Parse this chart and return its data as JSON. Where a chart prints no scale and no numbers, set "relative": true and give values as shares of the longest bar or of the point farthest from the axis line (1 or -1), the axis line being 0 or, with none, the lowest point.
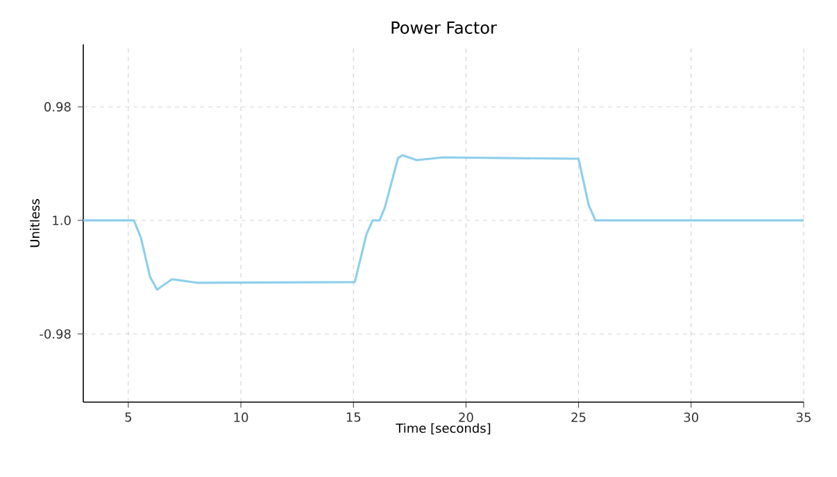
{
  "chart_data": {
    "type": "line",
    "title": "Power Factor",
    "xlabel": "Time [seconds]",
    "ylabel": "Unitless",
    "relative": true,
    "x": [
      3,
      5.25,
      5.56,
      5.97,
      6.28,
      6.94,
      8.04,
      15.06,
      15.58,
      15.85,
      16.16,
      16.4,
      16.98,
      17.19,
      17.81,
      18.97,
      25,
      25.45,
      25.75,
      35
    ],
    "series": [
      {
        "color": "#8ecfec",
        "values": [
          0,
          0,
          -0.25,
          -0.82,
          -1,
          -0.85,
          -0.9,
          -0.89,
          -0.2,
          0,
          0,
          0.19,
          0.9,
          0.94,
          0.87,
          0.91,
          0.89,
          0.22,
          0,
          0
        ]
      }
    ],
    "xlim": [
      3,
      35
    ],
    "xticks": [
      5,
      10,
      15,
      20,
      25,
      30,
      35
    ],
    "ref_lines": [
      {
        "axis": "y",
        "value": 1.64,
        "color": "#c8c8c8",
        "line_style": "dashed"
      },
      {
        "axis": "y",
        "value": 0,
        "color": "#c8c8c8",
        "line_style": "dashed"
      },
      {
        "axis": "y",
        "value": -1.64,
        "color": "#c8c8c8",
        "line_style": "dashed"
      }
    ],
    "annotations": [
      "0.98",
      "1.0",
      "-0.98"
    ],
    "grid": "x",
    "marker": "none",
    "line_style": "solid"
  }
}
